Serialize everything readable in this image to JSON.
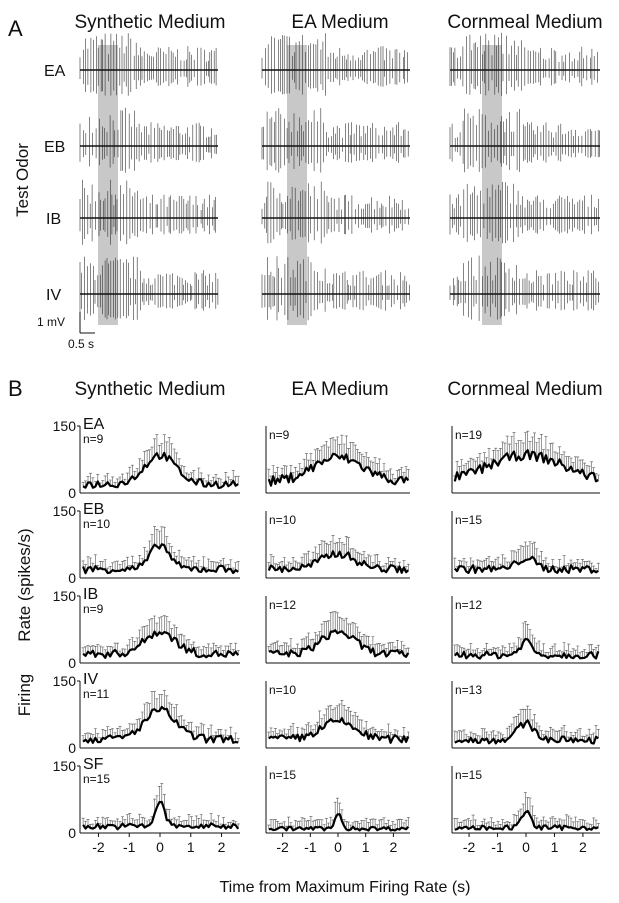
{
  "figure": {
    "panelA": {
      "letter": "A",
      "columns": [
        "Synthetic Medium",
        "EA Medium",
        "Cornmeal Medium"
      ],
      "rows": [
        "EA",
        "EB",
        "IB",
        "IV"
      ],
      "y_title": "Test Odor",
      "scalebar": {
        "voltage": "1 mV",
        "time": "0.5 s"
      }
    },
    "panelB": {
      "letter": "B",
      "columns": [
        "Synthetic Medium",
        "EA Medium",
        "Cornmeal Medium"
      ],
      "y_title_left": "Firing",
      "y_title_right": "Rate (spikes/s)",
      "x_title": "Time from Maximum Firing Rate (s)"
    }
  },
  "chart_data": {
    "type": "line",
    "title": "",
    "xlabel": "Time from Maximum Firing Rate (s)",
    "ylabel": "Firing Rate (spikes/s)",
    "xlim": [
      -2.6,
      2.6
    ],
    "ylim": [
      0,
      150
    ],
    "xticks": [
      "-2",
      "-1",
      "0",
      "1",
      "2"
    ],
    "yticks": [
      "0",
      "150"
    ],
    "columns": [
      "Synthetic Medium",
      "EA Medium",
      "Cornmeal Medium"
    ],
    "rows": [
      "EA",
      "EB",
      "IB",
      "IV",
      "SF"
    ],
    "panels": [
      {
        "row": "EA",
        "column": "Synthetic Medium",
        "n": "n=9",
        "peak": 85,
        "baseline": 20,
        "width": 0.5
      },
      {
        "row": "EA",
        "column": "EA Medium",
        "n": "n=9",
        "peak": 80,
        "baseline": 25,
        "width": 0.9
      },
      {
        "row": "EA",
        "column": "Cornmeal Medium",
        "n": "n=19",
        "peak": 85,
        "baseline": 25,
        "width": 1.3
      },
      {
        "row": "EB",
        "column": "Synthetic Medium",
        "n": "n=10",
        "peak": 75,
        "baseline": 20,
        "width": 0.3
      },
      {
        "row": "EB",
        "column": "EA Medium",
        "n": "n=10",
        "peak": 55,
        "baseline": 20,
        "width": 0.6
      },
      {
        "row": "EB",
        "column": "Cornmeal Medium",
        "n": "n=15",
        "peak": 45,
        "baseline": 20,
        "width": 0.3
      },
      {
        "row": "IB",
        "column": "Synthetic Medium",
        "n": "n=9",
        "peak": 70,
        "baseline": 20,
        "width": 0.5
      },
      {
        "row": "IB",
        "column": "EA Medium",
        "n": "n=12",
        "peak": 70,
        "baseline": 20,
        "width": 0.6
      },
      {
        "row": "IB",
        "column": "Cornmeal Medium",
        "n": "n=12",
        "peak": 50,
        "baseline": 18,
        "width": 0.2
      },
      {
        "row": "IV",
        "column": "Synthetic Medium",
        "n": "n=11",
        "peak": 85,
        "baseline": 20,
        "width": 0.5
      },
      {
        "row": "IV",
        "column": "EA Medium",
        "n": "n=10",
        "peak": 60,
        "baseline": 20,
        "width": 0.6
      },
      {
        "row": "IV",
        "column": "Cornmeal Medium",
        "n": "n=13",
        "peak": 55,
        "baseline": 18,
        "width": 0.3
      },
      {
        "row": "SF",
        "column": "Synthetic Medium",
        "n": "n=15",
        "peak": 70,
        "baseline": 15,
        "width": 0.15
      },
      {
        "row": "SF",
        "column": "EA Medium",
        "n": "n=15",
        "peak": 45,
        "baseline": 10,
        "width": 0.1
      },
      {
        "row": "SF",
        "column": "Cornmeal Medium",
        "n": "n=15",
        "peak": 50,
        "baseline": 12,
        "width": 0.15
      }
    ]
  }
}
